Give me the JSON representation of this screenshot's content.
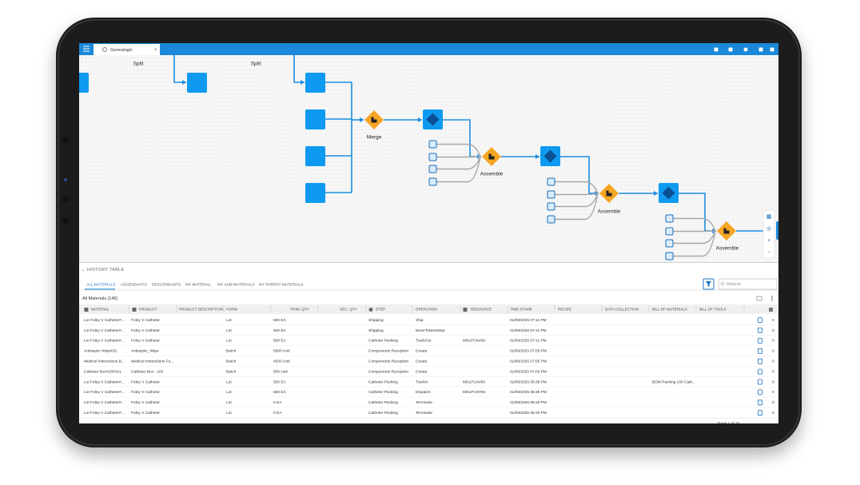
{
  "app": {
    "tab_title": "Genealogic"
  },
  "diagram": {
    "nodes": [
      {
        "label": "Split"
      },
      {
        "label": "Split"
      },
      {
        "label": "Merge"
      },
      {
        "label": "Assemble"
      },
      {
        "label": "Assemble"
      },
      {
        "label": "Assemble"
      }
    ]
  },
  "history_table": {
    "title": "HISTORY TABLE",
    "tabs": [
      "ALL MATERIALS",
      "ASCENDANTS",
      "DESCENDANTS",
      "MY MATERIAL",
      "MY SUB-MATERIALS",
      "MY PARENT MATERIALS"
    ],
    "search_placeholder": "Material",
    "summary": "All Materials (146)",
    "columns": [
      "MATERIAL",
      "PRODUCT",
      "PRODUCT DESCRIPTION",
      "FORM",
      "PRIM. QTY",
      "SEC. QTY",
      "STEP",
      "OPERATION",
      "RESOURCE",
      "TIME STAMP",
      "RECIPE",
      "DATA COLLECTION",
      "BILL OF MATERIALS",
      "BILL OF TOOLS"
    ],
    "rows": [
      {
        "material": "Lot Foley V Catheter#...",
        "product": "Foley V Catheter",
        "form": "Lot",
        "prim_qty": "500 EA",
        "step": "Shipping",
        "operation": "Ship",
        "time_stamp": "01/06/2025 07:11 PM",
        "count": 0
      },
      {
        "material": "Lot Foley V Catheter#...",
        "product": "Foley V Catheter",
        "form": "Lot",
        "prim_qty": "500 EA",
        "step": "Shipping",
        "operation": "MoveToNextStep",
        "time_stamp": "01/06/2025 07:11 PM",
        "count": 0
      },
      {
        "material": "Lot Foley V Catheter#...",
        "product": "Foley V Catheter",
        "form": "Lot",
        "prim_qty": "500 EA",
        "step": "Catheter Packing",
        "operation": "TrackOut",
        "resource": "MDLPCK#06",
        "time_stamp": "01/06/2025 07:11 PM",
        "count": 0
      },
      {
        "material": "Antiseptic Wipe#23",
        "product": "Antiseptic_Wipe",
        "form": "Batch",
        "prim_qty": "5000 Unit",
        "step": "Components Reception",
        "operation": "Create",
        "time_stamp": "01/06/2025 07:05 PM",
        "count": 0
      },
      {
        "material": "Medical Instructions B...",
        "product": "Medical Instructions Fo...",
        "form": "Batch",
        "prim_qty": "4500 Unit",
        "step": "Components Reception",
        "operation": "Create",
        "time_stamp": "01/06/2025 07:05 PM",
        "count": 0
      },
      {
        "material": "Catheter Box/100/#21",
        "product": "Catheter Box - 100",
        "form": "Batch",
        "prim_qty": "500 Unit",
        "step": "Components Reception",
        "operation": "Create",
        "time_stamp": "01/06/2025 07:03 PM",
        "count": 0
      },
      {
        "material": "Lot Foley V Catheter#...",
        "product": "Foley V Catheter",
        "form": "Lot",
        "prim_qty": "500 EA",
        "step": "Catheter Packing",
        "operation": "TrackIn",
        "resource": "MDLPCK#06",
        "time_stamp": "01/06/2025 06:38 PM",
        "bill_of_materials": "BOM Packing 100 Cath...",
        "count": 0
      },
      {
        "material": "Lot Foley V Catheter#...",
        "product": "Foley V Catheter",
        "form": "Lot",
        "prim_qty": "500 EA",
        "step": "Catheter Packing",
        "operation": "Dispatch",
        "resource": "MDLPCK#06",
        "time_stamp": "01/06/2025 06:38 PM",
        "count": 0
      },
      {
        "material": "Lot Foley V Catheter#...",
        "product": "Foley V Catheter",
        "form": "Lot",
        "prim_qty": "0 EA",
        "step": "Catheter Packing",
        "operation": "Terminate",
        "time_stamp": "01/06/2025 06:33 PM",
        "count": 0
      },
      {
        "material": "Lot Foley V Catheter#...",
        "product": "Foley V Catheter",
        "form": "Lot",
        "prim_qty": "0 EA",
        "step": "Catheter Packing",
        "operation": "Terminate",
        "time_stamp": "01/06/2025 06:33 PM",
        "count": 0
      }
    ],
    "pagination": "Page 1 of 15"
  }
}
